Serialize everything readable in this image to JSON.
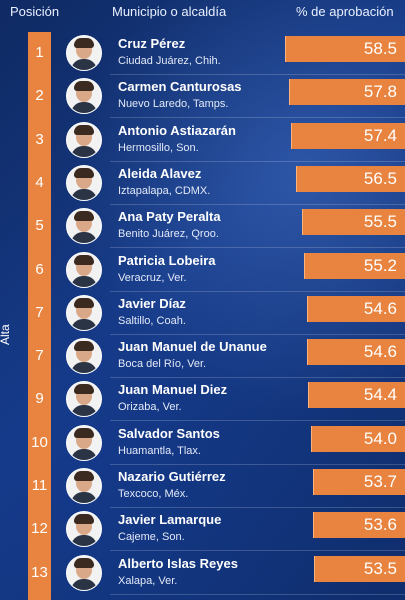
{
  "header": {
    "position": "Posición",
    "municipality": "Municipio o alcaldía",
    "approval": "% de aprobación"
  },
  "axis_label": "Alta",
  "colors": {
    "bar": "#e8843f",
    "background": "#163a86"
  },
  "chart_data": {
    "type": "bar",
    "orientation": "horizontal",
    "title": "",
    "xlabel": "% de aprobación",
    "ylabel": "Alta",
    "xlim": [
      50,
      60
    ],
    "rows": [
      {
        "rank": "1",
        "name": "Cruz Pérez",
        "place": "Ciudad Juárez, Chih.",
        "value": 58.5,
        "label": "58.5"
      },
      {
        "rank": "2",
        "name": "Carmen Canturosas",
        "place": "Nuevo Laredo, Tamps.",
        "value": 57.8,
        "label": "57.8"
      },
      {
        "rank": "3",
        "name": "Antonio Astiazarán",
        "place": "Hermosillo, Son.",
        "value": 57.4,
        "label": "57.4"
      },
      {
        "rank": "4",
        "name": "Aleida Alavez",
        "place": "Iztapalapa, CDMX.",
        "value": 56.5,
        "label": "56.5"
      },
      {
        "rank": "5",
        "name": "Ana Paty Peralta",
        "place": "Benito Juárez, Qroo.",
        "value": 55.5,
        "label": "55.5"
      },
      {
        "rank": "6",
        "name": "Patricia Lobeira",
        "place": "Veracruz, Ver.",
        "value": 55.2,
        "label": "55.2"
      },
      {
        "rank": "7",
        "name": "Javier Díaz",
        "place": "Saltillo, Coah.",
        "value": 54.6,
        "label": "54.6"
      },
      {
        "rank": "7",
        "name": "Juan Manuel de Unanue",
        "place": "Boca del Río, Ver.",
        "value": 54.6,
        "label": "54.6"
      },
      {
        "rank": "9",
        "name": "Juan Manuel Diez",
        "place": "Orizaba, Ver.",
        "value": 54.4,
        "label": "54.4"
      },
      {
        "rank": "10",
        "name": "Salvador Santos",
        "place": "Huamantla, Tlax.",
        "value": 54.0,
        "label": "54.0"
      },
      {
        "rank": "11",
        "name": "Nazario Gutiérrez",
        "place": "Texcoco, Méx.",
        "value": 53.7,
        "label": "53.7"
      },
      {
        "rank": "12",
        "name": "Javier Lamarque",
        "place": "Cajeme, Son.",
        "value": 53.6,
        "label": "53.6"
      },
      {
        "rank": "13",
        "name": "Alberto Islas Reyes",
        "place": "Xalapa, Ver.",
        "value": 53.5,
        "label": "53.5"
      }
    ]
  }
}
